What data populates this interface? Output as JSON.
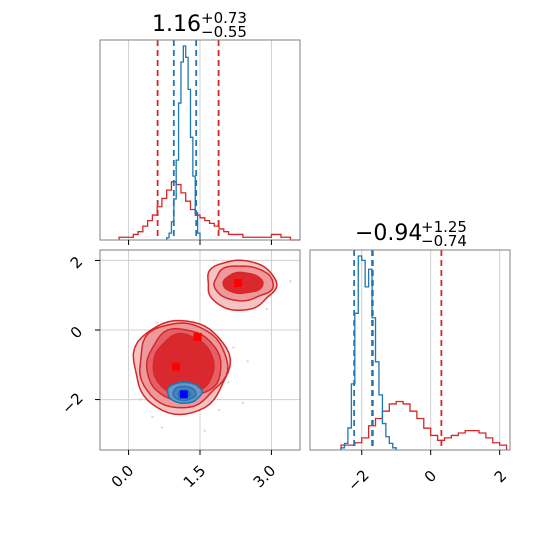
{
  "chart_data": [
    {
      "panel": "marginal-x",
      "type": "histogram",
      "title": {
        "median": "1.16",
        "plus": "+0.73",
        "minus": "−0.55"
      },
      "xlim": [
        -0.6,
        3.6
      ],
      "series": [
        {
          "color": "#1f77b4",
          "bin_edges": [
            0.8,
            0.85,
            0.9,
            0.95,
            1.0,
            1.05,
            1.1,
            1.15,
            1.2,
            1.25,
            1.3,
            1.35,
            1.4,
            1.45,
            1.5
          ],
          "counts": [
            1,
            3,
            8,
            18,
            35,
            60,
            78,
            85,
            80,
            66,
            45,
            28,
            12,
            3
          ],
          "quantile_lines": [
            0.95,
            1.42
          ]
        },
        {
          "color": "#d62728",
          "bin_edges": [
            -0.2,
            0.0,
            0.1,
            0.2,
            0.3,
            0.4,
            0.5,
            0.6,
            0.7,
            0.8,
            0.9,
            1.0,
            1.1,
            1.2,
            1.3,
            1.4,
            1.5,
            1.6,
            1.7,
            1.8,
            1.9,
            2.0,
            2.1,
            2.2,
            2.4,
            2.6,
            2.8,
            3.0,
            3.2,
            3.4,
            3.6
          ],
          "counts": [
            1,
            1,
            2,
            3,
            5,
            7,
            9,
            12,
            15,
            18,
            21,
            20,
            17,
            14,
            11,
            9,
            8,
            7,
            6,
            5,
            4,
            3,
            2,
            2,
            1,
            1,
            1,
            2,
            1,
            0
          ],
          "quantile_lines": [
            0.61,
            1.89
          ]
        }
      ]
    },
    {
      "panel": "marginal-y",
      "type": "histogram",
      "title": {
        "median": "−0.94",
        "plus": "+1.25",
        "minus": "−0.74"
      },
      "xlim": [
        -3.5,
        2.3
      ],
      "ticks": [
        "−2",
        "0",
        "2"
      ],
      "series": [
        {
          "color": "#1f77b4",
          "bin_edges": [
            -2.6,
            -2.5,
            -2.4,
            -2.3,
            -2.2,
            -2.1,
            -2.0,
            -1.9,
            -1.8,
            -1.7,
            -1.6,
            -1.5,
            -1.4,
            -1.3,
            -1.2,
            -1.1,
            -1.0
          ],
          "counts": [
            1,
            3,
            10,
            30,
            62,
            88,
            86,
            74,
            82,
            60,
            40,
            25,
            12,
            6,
            3,
            1
          ],
          "quantile_lines": [
            -2.22,
            -1.7
          ]
        },
        {
          "color": "#d62728",
          "bin_edges": [
            -2.6,
            -2.2,
            -2.0,
            -1.8,
            -1.6,
            -1.4,
            -1.2,
            -1.0,
            -0.8,
            -0.6,
            -0.4,
            -0.2,
            0.0,
            0.2,
            0.4,
            0.6,
            0.8,
            1.0,
            1.2,
            1.4,
            1.6,
            1.8,
            2.0,
            2.2
          ],
          "counts": [
            2,
            3,
            5,
            10,
            13,
            16,
            19,
            20,
            19,
            16,
            13,
            9,
            6,
            4,
            5,
            6,
            7,
            8,
            8,
            7,
            5,
            3,
            2
          ],
          "quantile_lines": [
            -1.68,
            0.31
          ]
        }
      ]
    },
    {
      "panel": "joint",
      "type": "contour",
      "xlim": [
        -0.6,
        3.6
      ],
      "ylim": [
        -3.45,
        2.3
      ],
      "xticks": [
        "0.0",
        "1.5",
        "3.0"
      ],
      "yticks": [
        "−2",
        "0",
        "2"
      ],
      "red_markers": [
        {
          "x": 1.45,
          "y": -0.2
        },
        {
          "x": 1.0,
          "y": -1.05
        },
        {
          "x": 2.3,
          "y": 1.35
        }
      ],
      "blue_markers": [
        {
          "x": 1.16,
          "y": -1.85
        }
      ],
      "colors": {
        "red": "#d62728",
        "blue": "#1f77b4",
        "blue_marker": "#0000ff",
        "red_marker": "#ff0000"
      }
    }
  ]
}
